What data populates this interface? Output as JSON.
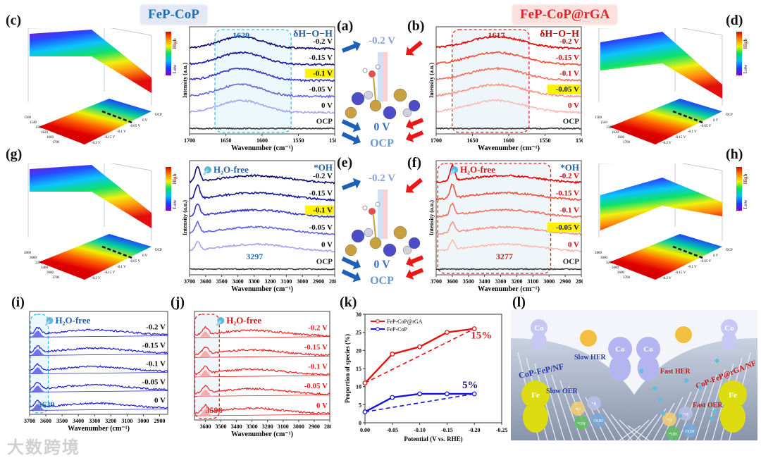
{
  "headers": {
    "left": "FeP-CoP",
    "right": "FeP-CoP@rGA"
  },
  "panel_letters": {
    "a": "(a)",
    "b": "(b)",
    "c": "(c)",
    "d": "(d)",
    "e": "(e)",
    "f": "(f)",
    "g": "(g)",
    "h": "(h)",
    "i": "(i)",
    "j": "(j)",
    "k": "(k)",
    "l": "(l)"
  },
  "colors": {
    "blue": "#1a1aa8",
    "red": "#e81010",
    "cyan_box": "#2ec4e6",
    "highlight": "#fff200"
  },
  "surfaces": {
    "c": {
      "high": "High",
      "low": "Low",
      "wn_ticks": [
        "1500",
        "1540",
        "1580",
        "1620",
        "1660",
        "1700"
      ],
      "v_ticks": [
        "OCP",
        "0 V",
        "-0.05 V",
        "-0.1 V",
        "-0.15 V",
        "-0.2 V"
      ]
    },
    "d": {
      "high": "High",
      "low": "Low",
      "wn_ticks": [
        "1500",
        "1540",
        "1580",
        "1620",
        "1660",
        "1700"
      ],
      "v_ticks": [
        "OCP",
        "0 V",
        "-0.05 V",
        "-0.1 V",
        "-0.15 V",
        "-0.2 V"
      ]
    },
    "g": {
      "high": "High",
      "low": "Low",
      "wn_ticks": [
        "2800",
        "3000",
        "3200",
        "3400",
        "3600",
        "3700"
      ],
      "v_ticks": [
        "OCP",
        "0 V",
        "-0.05 V",
        "-0.1 V",
        "-0.15 V",
        "-0.2 V"
      ]
    },
    "h": {
      "high": "High",
      "low": "Low",
      "wn_ticks": [
        "2800",
        "3000",
        "3200",
        "3400",
        "3600",
        "3700"
      ],
      "v_ticks": [
        "OCP",
        "0 V",
        "-0.05 V",
        "-0.1 V",
        "-0.15 V",
        "-0.2 V"
      ]
    }
  },
  "spectra": {
    "a": {
      "theme": "blue",
      "ylabel": "Intensity (a.u.)",
      "xlabel": "Wavenumber (cm⁻¹)",
      "xrange": [
        1700,
        1500
      ],
      "x_ticks": [
        1700,
        1650,
        1600,
        1550,
        1500
      ],
      "traces": [
        "-0.2 V",
        "-0.15 V",
        "-0.1 V",
        "-0.05 V",
        "0 V",
        "OCP"
      ],
      "highlight": 2,
      "peak": 1629,
      "peak_label": "1629",
      "band_label": "δH−O−H",
      "box": [
        1665,
        1560
      ],
      "width": 30,
      "sharp": null
    },
    "b": {
      "theme": "red",
      "ylabel": "Intensity (a.u.)",
      "xlabel": "Wavenumber (cm⁻¹)",
      "xrange": [
        1700,
        1500
      ],
      "x_ticks": [
        1700,
        1650,
        1600,
        1550,
        1500
      ],
      "traces": [
        "-0.2 V",
        "-0.15 V",
        "-0.1 V",
        "-0.05 V",
        "0 V",
        "OCP"
      ],
      "highlight": 3,
      "peak": 1617,
      "peak_label": "1617",
      "band_label": "δH−O−H",
      "box": [
        1678,
        1572
      ],
      "width": 38,
      "sharp": null
    },
    "e": {
      "theme": "blue",
      "ylabel": "Intensity (a.u.)",
      "xlabel": "Wavenumber (cm⁻¹)",
      "xrange": [
        3700,
        2800
      ],
      "x_ticks": [
        3700,
        3600,
        3500,
        3400,
        3300,
        3200,
        3100,
        3000,
        2900,
        2800
      ],
      "traces": [
        "-0.2 V",
        "-0.15 V",
        "-0.1 V",
        "-0.05 V",
        "0 V",
        "OCP"
      ],
      "highlight": 2,
      "peak": 3297,
      "peak_label": "3297",
      "band_label": "*OH",
      "free_label": "H₂O-free",
      "box": null,
      "width": 220,
      "sharp": 3650
    },
    "f": {
      "theme": "red",
      "ylabel": "Intensity (a.u.)",
      "xlabel": "Wavenumber (cm⁻¹)",
      "xrange": [
        3700,
        2800
      ],
      "x_ticks": [
        3700,
        3600,
        3500,
        3400,
        3300,
        3200,
        3100,
        3000,
        2900,
        2800
      ],
      "traces": [
        "-0.2 V",
        "-0.15 V",
        "-0.1 V",
        "-0.05 V",
        "0 V",
        "OCP"
      ],
      "highlight": 3,
      "peak": 3277,
      "peak_label": "3277",
      "band_label": "*OH",
      "free_label": "H₂O-free",
      "box": [
        3690,
        2990
      ],
      "width": 220,
      "sharp": 3600
    },
    "i": {
      "theme": "blue",
      "ylabel": "",
      "xlabel": "Wavenumber (cm⁻¹)",
      "xrange": [
        3700,
        2850
      ],
      "x_ticks": [
        3700,
        3600,
        3500,
        3400,
        3300,
        3200,
        3100,
        3000,
        2900
      ],
      "traces": [
        "-0.2 V",
        "-0.15 V",
        "-0.1 V",
        "-0.05 V",
        "0 V"
      ],
      "highlight": -1,
      "peak": 3300,
      "peak_label": "3639",
      "band_label": "",
      "free_label": "H₂O-free",
      "box": [
        3695,
        3585
      ],
      "width": 200,
      "sharp": 3650,
      "fit": true
    },
    "j": {
      "theme": "red",
      "ylabel": "",
      "xlabel": "Wavenumber (cm⁻¹)",
      "xrange": [
        3670,
        2800
      ],
      "x_ticks": [
        3600,
        3500,
        3400,
        3300,
        3200,
        3100,
        3000,
        2900,
        2800
      ],
      "traces": [
        "-0.2 V",
        "-0.15 V",
        "-0.1 V",
        "-0.05 V",
        "0 V"
      ],
      "highlight": -1,
      "peak": 3300,
      "peak_label": "3598",
      "band_label": "",
      "free_label": "H₂O-free",
      "box": [
        3668,
        3510
      ],
      "width": 200,
      "sharp": 3600,
      "fit": true
    }
  },
  "center": {
    "top": {
      "v1": "-0.2 V",
      "v2": "0 V",
      "v3": "OCP"
    },
    "bottom": {
      "v1": "-0.2 V",
      "v2": "0 V",
      "v3": "OCP"
    }
  },
  "chart_data": {
    "type": "line",
    "title": "",
    "xlabel": "Potential (V vs. RHE)",
    "ylabel": "Proportion of species (%)",
    "x": [
      0.0,
      -0.05,
      -0.1,
      -0.15,
      -0.2
    ],
    "x_ticks": [
      "0.00",
      "-0.05",
      "-0.10",
      "-0.15",
      "-0.20",
      "-0.25"
    ],
    "y_ticks": [
      "0",
      "5",
      "10",
      "15",
      "20",
      "25",
      "30"
    ],
    "xlim": [
      0.0,
      -0.25
    ],
    "ylim": [
      0,
      30
    ],
    "series": [
      {
        "name": "FeP-CoP@rGA",
        "color": "#e81010",
        "values": [
          11,
          19,
          21,
          25,
          26
        ],
        "annotation": "15%"
      },
      {
        "name": "FeP-CoP",
        "color": "#1414e0",
        "values": [
          3,
          7,
          8,
          8,
          8
        ],
        "annotation": "5%"
      }
    ],
    "legend": "top-left"
  },
  "scheme": {
    "co": "Co",
    "fe": "Fe",
    "slow_her": "Slow HER",
    "fast_her": "Fast HER",
    "slow_oer": "Slow OER",
    "fast_oer": "Fast OER",
    "left_belt": "CoP-FeP/NF",
    "right_belt": "CoP-FeP@rGA/NF",
    "species": [
      "*O",
      "*H",
      "*OH",
      "OOH"
    ]
  },
  "watermark": "大数跨境"
}
